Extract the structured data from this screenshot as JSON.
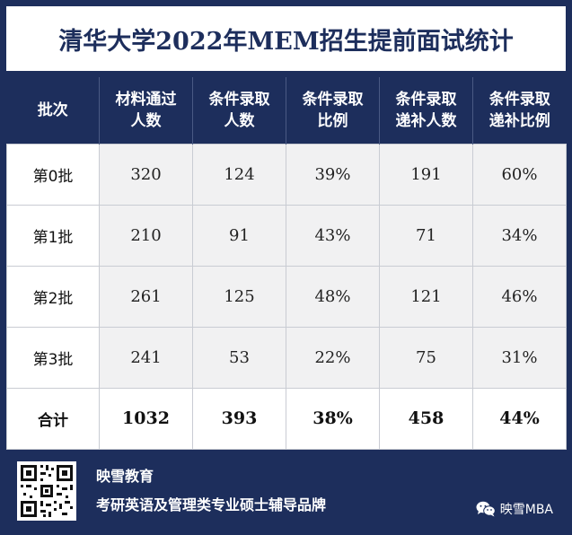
{
  "title": "清华大学2022年MEM招生提前面试统计",
  "table": {
    "headers": [
      [
        "批次"
      ],
      [
        "材料通过",
        "人数"
      ],
      [
        "条件录取",
        "人数"
      ],
      [
        "条件录取",
        "比例"
      ],
      [
        "条件录取",
        "递补人数"
      ],
      [
        "条件录取",
        "递补比例"
      ]
    ],
    "rows": [
      [
        "第0批",
        "320",
        "124",
        "39%",
        "191",
        "60%"
      ],
      [
        "第1批",
        "210",
        "91",
        "43%",
        "71",
        "34%"
      ],
      [
        "第2批",
        "261",
        "125",
        "48%",
        "121",
        "46%"
      ],
      [
        "第3批",
        "241",
        "53",
        "22%",
        "75",
        "31%"
      ]
    ],
    "total": [
      "合计",
      "1032",
      "393",
      "38%",
      "458",
      "44%"
    ]
  },
  "footer": {
    "brand_name": "映雪教育",
    "slogan": "考研英语及管理类专业硕士辅导品牌",
    "wechat_account": "映雪MBA",
    "qr_icon": "qr-code-icon",
    "wechat_icon": "wechat-icon"
  },
  "colors": {
    "navy": "#1d2e5c",
    "cell_bg": "#f1f1f2",
    "white": "#ffffff"
  }
}
